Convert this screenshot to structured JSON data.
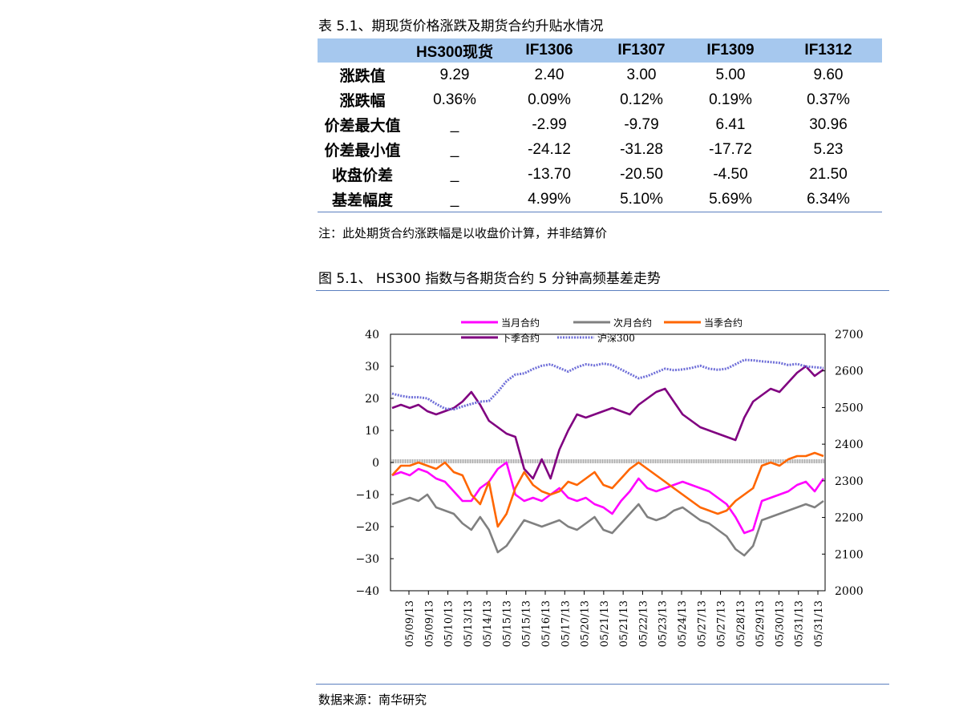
{
  "table": {
    "caption": "表 5.1、期现货价格涨跌及期货合约升贴水情况",
    "headers": [
      "",
      "HS300现货",
      "IF1306",
      "IF1307",
      "IF1309",
      "IF1312"
    ],
    "rows": [
      {
        "label": "涨跌值",
        "cells": [
          "9.29",
          "2.40",
          "3.00",
          "5.00",
          "9.60"
        ]
      },
      {
        "label": "涨跌幅",
        "cells": [
          "0.36%",
          "0.09%",
          "0.12%",
          "0.19%",
          "0.37%"
        ]
      },
      {
        "label": "价差最大值",
        "cells": [
          "_",
          "-2.99",
          "-9.79",
          "6.41",
          "30.96"
        ]
      },
      {
        "label": "价差最小值",
        "cells": [
          "_",
          "-24.12",
          "-31.28",
          "-17.72",
          "5.23"
        ]
      },
      {
        "label": "收盘价差",
        "cells": [
          "_",
          "-13.70",
          "-20.50",
          "-4.50",
          "21.50"
        ]
      },
      {
        "label": "基差幅度",
        "cells": [
          "_",
          "4.99%",
          "5.10%",
          "5.69%",
          "6.34%"
        ]
      }
    ],
    "note": "注：此处期货合约涨跌幅是以收盘价计算，并非结算价"
  },
  "figure": {
    "caption": "图 5.1、 HS300 指数与各期货合约 5 分钟高频基差走势",
    "source": "数据来源：南华研究"
  },
  "chart_data": {
    "type": "line",
    "title": "",
    "x_tick_labels": [
      "05/09/13",
      "05/09/13",
      "05/10/13",
      "05/13/13",
      "05/14/13",
      "05/15/13",
      "05/15/13",
      "05/16/13",
      "05/17/13",
      "05/20/13",
      "05/21/13",
      "05/21/13",
      "05/22/13",
      "05/23/13",
      "05/24/13",
      "05/27/13",
      "05/27/13",
      "05/28/13",
      "05/29/13",
      "05/30/13",
      "05/31/13",
      "05/31/13"
    ],
    "y_left": {
      "range": [
        -40,
        40
      ],
      "ticks": [
        "40",
        "30",
        "20",
        "10",
        "0",
        "−10",
        "−20",
        "−30",
        "−40"
      ]
    },
    "y_right": {
      "range": [
        2000,
        2700
      ],
      "ticks": [
        "2700",
        "2600",
        "2500",
        "2400",
        "2300",
        "2200",
        "2100",
        "2000"
      ]
    },
    "legend": {
      "placement": "top-center"
    },
    "series": [
      {
        "name": "当月合约",
        "axis": "left",
        "color": "#ff00ff",
        "values": [
          -4,
          -3,
          -4,
          -2,
          -3,
          -5,
          -6,
          -9,
          -12,
          -12,
          -8,
          -6,
          -2,
          0,
          -10,
          -12,
          -11,
          -12,
          -10,
          -8,
          -11,
          -12,
          -11,
          -13,
          -14,
          -16,
          -12,
          -9,
          -5,
          -8,
          -9,
          -8,
          -7,
          -6,
          -7,
          -8,
          -9,
          -11,
          -13,
          -17,
          -22,
          -21,
          -12,
          -11,
          -10,
          -9,
          -7,
          -6,
          -9,
          -5
        ]
      },
      {
        "name": "次月合约",
        "axis": "left",
        "color": "#808080",
        "values": [
          -13,
          -12,
          -11,
          -12,
          -10,
          -14,
          -15,
          -16,
          -19,
          -21,
          -17,
          -21,
          -28,
          -26,
          -22,
          -18,
          -19,
          -20,
          -19,
          -18,
          -20,
          -21,
          -19,
          -17,
          -21,
          -22,
          -19,
          -16,
          -13,
          -17,
          -18,
          -17,
          -15,
          -14,
          -16,
          -18,
          -19,
          -21,
          -23,
          -27,
          -29,
          -26,
          -18,
          -17,
          -16,
          -15,
          -14,
          -13,
          -14,
          -12
        ]
      },
      {
        "name": "当季合约",
        "axis": "left",
        "color": "#ff6600",
        "values": [
          -4,
          -1,
          -1,
          0,
          -1,
          -2,
          0,
          -3,
          -4,
          -10,
          -13,
          -6,
          -20,
          -16,
          -8,
          -3,
          -7,
          -9,
          -10,
          -9,
          -6,
          -7,
          -5,
          -3,
          -7,
          -8,
          -5,
          -2,
          0,
          -2,
          -4,
          -6,
          -8,
          -10,
          -12,
          -14,
          -15,
          -16,
          -15,
          -12,
          -10,
          -8,
          -1,
          0,
          -1,
          1,
          2,
          2,
          3,
          2
        ]
      },
      {
        "name": "下季合约",
        "axis": "left",
        "color": "#800080",
        "values": [
          17,
          18,
          17,
          18,
          16,
          15,
          16,
          17,
          19,
          22,
          18,
          13,
          11,
          9,
          8,
          -2,
          -5,
          1,
          -5,
          4,
          10,
          15,
          14,
          15,
          16,
          17,
          16,
          15,
          18,
          20,
          22,
          23,
          19,
          15,
          13,
          11,
          10,
          9,
          8,
          7,
          14,
          19,
          21,
          23,
          22,
          25,
          28,
          30,
          27,
          29
        ]
      },
      {
        "name": "沪深300",
        "axis": "right",
        "color": "#6f6fd8",
        "values": [
          2538,
          2532,
          2528,
          2528,
          2525,
          2510,
          2497,
          2495,
          2503,
          2510,
          2516,
          2518,
          2543,
          2572,
          2590,
          2593,
          2605,
          2614,
          2618,
          2608,
          2598,
          2610,
          2618,
          2615,
          2620,
          2616,
          2604,
          2592,
          2580,
          2586,
          2596,
          2606,
          2602,
          2604,
          2608,
          2614,
          2606,
          2603,
          2606,
          2618,
          2630,
          2629,
          2626,
          2624,
          2622,
          2616,
          2619,
          2612,
          2610,
          2608
        ]
      }
    ],
    "basis_zero_band": {
      "axis": "left",
      "value": 0
    }
  }
}
